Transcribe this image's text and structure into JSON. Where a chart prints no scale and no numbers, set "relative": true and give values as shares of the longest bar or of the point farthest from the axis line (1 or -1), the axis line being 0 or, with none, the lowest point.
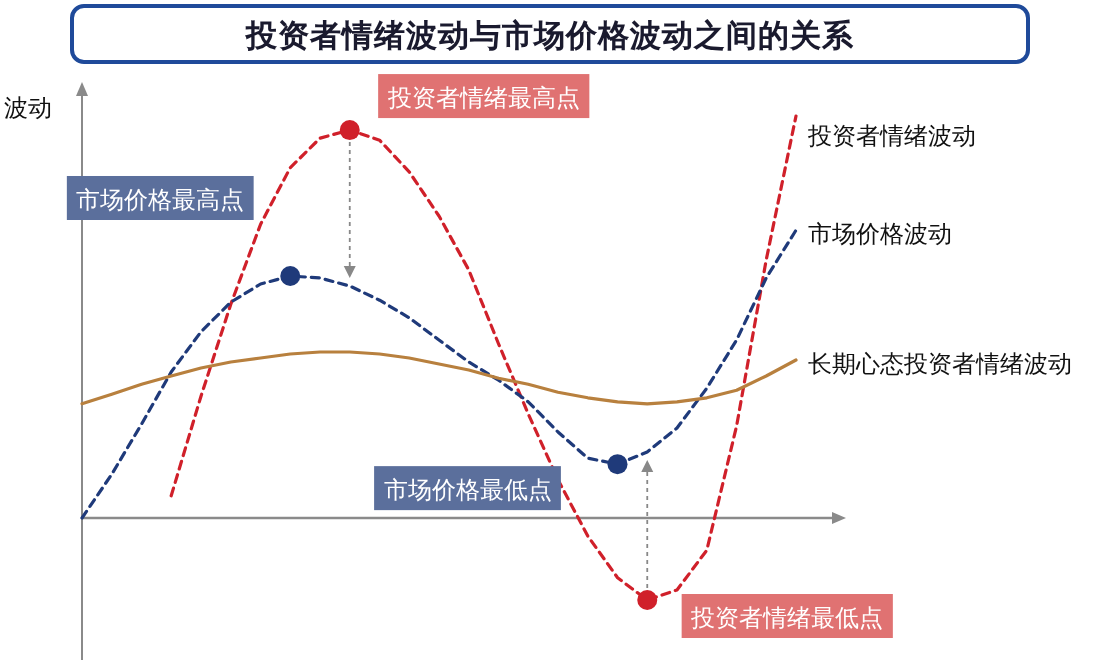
{
  "chart_data": {
    "type": "line",
    "title": "投资者情绪波动与市场价格波动之间的关系",
    "ylabel": "波动",
    "relative": true,
    "legend": false,
    "grid": false,
    "categories": [
      null,
      null,
      null,
      null,
      null,
      null,
      null,
      null,
      null,
      null,
      null,
      null,
      null,
      null,
      null,
      null,
      null,
      null,
      null,
      null,
      null,
      null,
      null,
      null,
      null
    ],
    "series": [
      {
        "name": "投资者情绪波动",
        "color": "#d0202a",
        "line_style": "dashed",
        "values": [
          null,
          null,
          null,
          0.055,
          0.303,
          0.532,
          0.731,
          0.871,
          0.945,
          0.965,
          0.94,
          0.861,
          0.751,
          0.617,
          0.433,
          0.259,
          0.095,
          -0.045,
          -0.149,
          -0.204,
          -0.179,
          -0.08,
          0.229,
          0.642,
          1
        ]
      },
      {
        "name": "市场价格波动",
        "color": "#1f3a7a",
        "line_style": "dashed",
        "values": [
          0,
          0.109,
          0.234,
          0.363,
          0.463,
          0.537,
          0.582,
          0.602,
          0.597,
          0.577,
          0.542,
          0.498,
          0.443,
          0.388,
          0.343,
          0.289,
          0.214,
          0.149,
          0.134,
          0.164,
          0.224,
          0.323,
          0.443,
          0.597,
          0.716
        ]
      },
      {
        "name": "长期心态投资者情绪波动",
        "color": "#b8803e",
        "line_style": "solid",
        "values": [
          0.284,
          0.308,
          0.333,
          0.353,
          0.373,
          0.388,
          0.398,
          0.408,
          0.413,
          0.413,
          0.408,
          0.398,
          0.383,
          0.368,
          0.348,
          0.333,
          0.313,
          0.299,
          0.289,
          0.284,
          0.289,
          0.299,
          0.318,
          0.353,
          0.393
        ]
      }
    ],
    "annotations": [
      "投资者情绪最高点",
      "市场价格最高点",
      "市场价格最低点",
      "投资者情绪最低点"
    ]
  }
}
